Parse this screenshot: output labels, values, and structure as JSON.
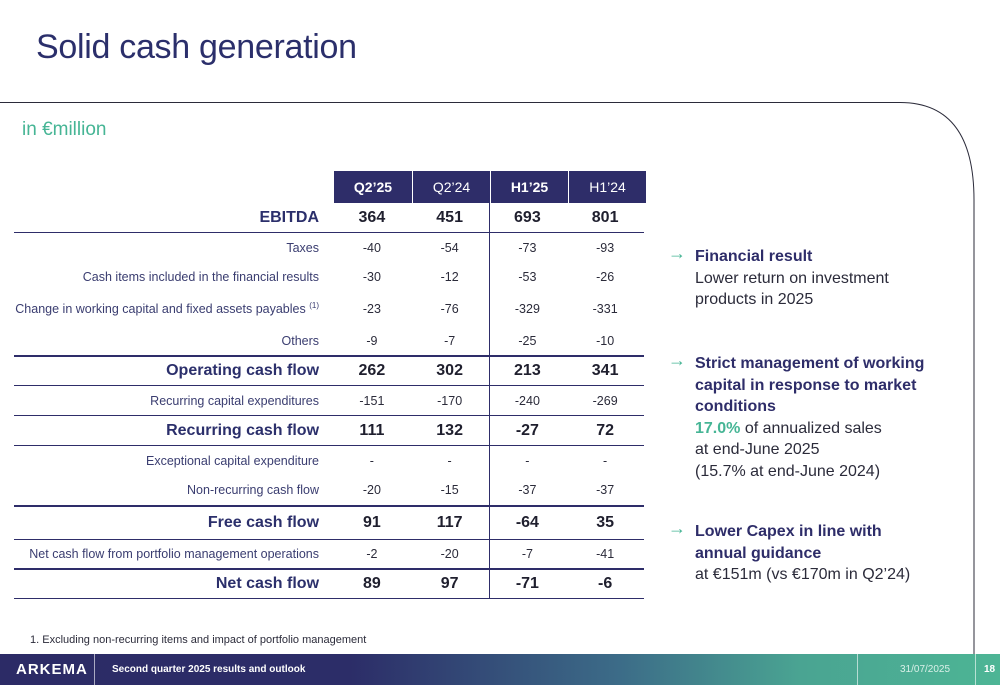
{
  "title": "Solid cash generation",
  "unit": "in €million",
  "table": {
    "headers": [
      "Q2’25",
      "Q2’24",
      "H1’25",
      "H1’24"
    ],
    "rows": [
      {
        "label": "EBITDA",
        "values": [
          "364",
          "451",
          "693",
          "801"
        ]
      },
      {
        "label": "Taxes",
        "values": [
          "-40",
          "-54",
          "-73",
          "-93"
        ]
      },
      {
        "label": "Cash items included in the financial results",
        "values": [
          "-30",
          "-12",
          "-53",
          "-26"
        ]
      },
      {
        "label": "Change in working capital and fixed assets payables",
        "sup": "(1)",
        "values": [
          "-23",
          "-76",
          "-329",
          "-331"
        ]
      },
      {
        "label": "Others",
        "values": [
          "-9",
          "-7",
          "-25",
          "-10"
        ]
      },
      {
        "label": "Operating cash flow",
        "values": [
          "262",
          "302",
          "213",
          "341"
        ]
      },
      {
        "label": "Recurring capital expenditures",
        "values": [
          "-151",
          "-170",
          "-240",
          "-269"
        ]
      },
      {
        "label": "Recurring cash flow",
        "values": [
          "111",
          "132",
          "-27",
          "72"
        ]
      },
      {
        "label": "Exceptional capital expenditure",
        "values": [
          "-",
          "-",
          "-",
          "-"
        ]
      },
      {
        "label": "Non-recurring cash flow",
        "values": [
          "-20",
          "-15",
          "-37",
          "-37"
        ]
      },
      {
        "label": "Free cash flow",
        "values": [
          "91",
          "117",
          "-64",
          "35"
        ]
      },
      {
        "label": "Net cash flow from portfolio management operations",
        "values": [
          "-2",
          "-20",
          "-7",
          "-41"
        ]
      },
      {
        "label": "Net cash flow",
        "values": [
          "89",
          "97",
          "-71",
          "-6"
        ]
      }
    ]
  },
  "highlights": [
    {
      "head": "Financial result",
      "lines": [
        "Lower return on investment",
        "products in 2025"
      ]
    },
    {
      "head_lines": [
        "Strict management of working",
        "capital in response to market",
        "conditions"
      ],
      "accent": "17.0%",
      "accent_rest": " of annualized sales",
      "lines": [
        "at end-June 2025",
        "(15.7% at end-June 2024)"
      ]
    },
    {
      "head_lines": [
        "Lower Capex in line with",
        "annual guidance"
      ],
      "lines": [
        "at €151m (vs €170m in Q2’24)"
      ]
    }
  ],
  "footnote": "1. Excluding non-recurring items and impact of portfolio management",
  "footer": {
    "logo": "ARKEMA",
    "subtitle": "Second quarter 2025 results and outlook",
    "date": "31/07/2025",
    "page": "18"
  },
  "colors": {
    "navy": "#2e2d69",
    "green": "#46b595"
  }
}
